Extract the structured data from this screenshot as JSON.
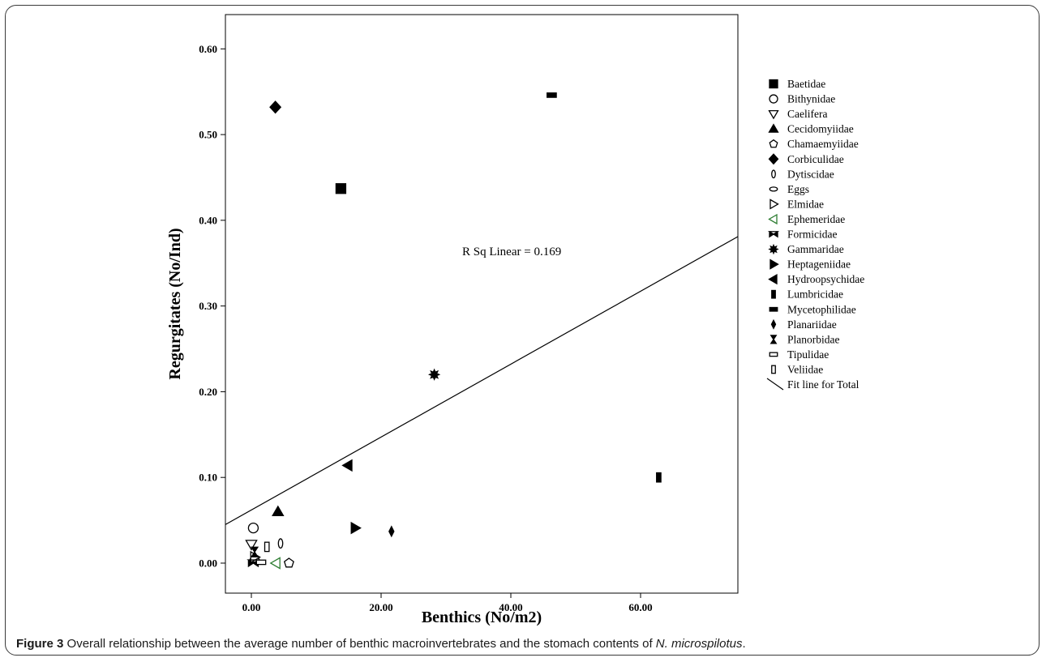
{
  "chart_data": {
    "type": "scatter",
    "xlabel": "Benthics (No/m2)",
    "ylabel": "Regurgitates (No/Ind)",
    "xlim": [
      -4,
      75
    ],
    "ylim": [
      -0.035,
      0.64
    ],
    "xticks": [
      "0.00",
      "20.00",
      "40.00",
      "60.00"
    ],
    "xtick_values": [
      0,
      20,
      40,
      60
    ],
    "yticks": [
      "0.00",
      "0.10",
      "0.20",
      "0.30",
      "0.40",
      "0.50",
      "0.60"
    ],
    "ytick_values": [
      0,
      0.1,
      0.2,
      0.3,
      0.4,
      0.5,
      0.6
    ],
    "annotation": "R Sq Linear = 0.169",
    "fit_line": {
      "label": "Fit line for Total",
      "y_at_xmin": 0.045,
      "y_at_xmax": 0.381
    },
    "legend_position": "right",
    "series": [
      {
        "name": "Baetidae",
        "marker": "square-filled",
        "color": "#000000",
        "points": [
          [
            13.8,
            0.437
          ]
        ]
      },
      {
        "name": "Bithynidae",
        "marker": "circle-open",
        "color": "#000000",
        "points": [
          [
            0.3,
            0.041
          ]
        ]
      },
      {
        "name": "Caelifera",
        "marker": "triangle-down-open",
        "color": "#000000",
        "points": [
          [
            0.0,
            0.022
          ]
        ]
      },
      {
        "name": "Cecidomyiidae",
        "marker": "triangle-up-filled",
        "color": "#000000",
        "points": [
          [
            4.1,
            0.06
          ]
        ]
      },
      {
        "name": "Chamaemyiidae",
        "marker": "pentagon-open",
        "color": "#000000",
        "points": [
          [
            5.8,
            0.0
          ]
        ]
      },
      {
        "name": "Corbiculidae",
        "marker": "diamond-filled",
        "color": "#000000",
        "points": [
          [
            3.7,
            0.532
          ]
        ]
      },
      {
        "name": "Dytiscidae",
        "marker": "ellipse-tall-open",
        "color": "#000000",
        "points": [
          [
            4.5,
            0.023
          ]
        ]
      },
      {
        "name": "Eggs",
        "marker": "ellipse-wide-open",
        "color": "#000000",
        "points": [
          [
            0.5,
            0.004
          ]
        ]
      },
      {
        "name": "Elmidae",
        "marker": "triangle-right-open",
        "color": "#000000",
        "points": [
          [
            0.5,
            0.007
          ]
        ]
      },
      {
        "name": "Ephemeridae",
        "marker": "triangle-left-open",
        "color": "#2e7d32",
        "points": [
          [
            3.8,
            0.0
          ]
        ]
      },
      {
        "name": "Formicidae",
        "marker": "bowtie-filled",
        "color": "#000000",
        "points": [
          [
            0.3,
            0.0
          ]
        ]
      },
      {
        "name": "Gammaridae",
        "marker": "star-filled",
        "color": "#000000",
        "points": [
          [
            28.2,
            0.22
          ]
        ]
      },
      {
        "name": "Heptageniidae",
        "marker": "triangle-right-filled",
        "color": "#000000",
        "points": [
          [
            16.0,
            0.041
          ]
        ]
      },
      {
        "name": "Hydroopsychidae",
        "marker": "triangle-left-filled",
        "color": "#000000",
        "points": [
          [
            14.9,
            0.114
          ]
        ]
      },
      {
        "name": "Lumbricidae",
        "marker": "rect-tall-filled",
        "color": "#000000",
        "points": [
          [
            62.8,
            0.1
          ]
        ]
      },
      {
        "name": "Mycetophilidae",
        "marker": "rect-wide-filled",
        "color": "#000000",
        "points": [
          [
            46.3,
            0.546
          ]
        ]
      },
      {
        "name": "Planariidae",
        "marker": "diamond-small-filled",
        "color": "#000000",
        "points": [
          [
            21.6,
            0.037
          ]
        ]
      },
      {
        "name": "Planorbidae",
        "marker": "hourglass-filled",
        "color": "#000000",
        "points": [
          [
            0.5,
            0.013
          ]
        ]
      },
      {
        "name": "Tipulidae",
        "marker": "rect-wide-open",
        "color": "#000000",
        "points": [
          [
            1.5,
            0.001
          ]
        ]
      },
      {
        "name": "Veliidae",
        "marker": "rect-tall-open",
        "color": "#000000",
        "points": [
          [
            2.4,
            0.019
          ]
        ]
      }
    ]
  },
  "caption": {
    "label": "Figure 3",
    "text": " Overall relationship between the average number of benthic macroinvertebrates and the stomach contents of ",
    "species": "N. microspilotus",
    "end": "."
  }
}
